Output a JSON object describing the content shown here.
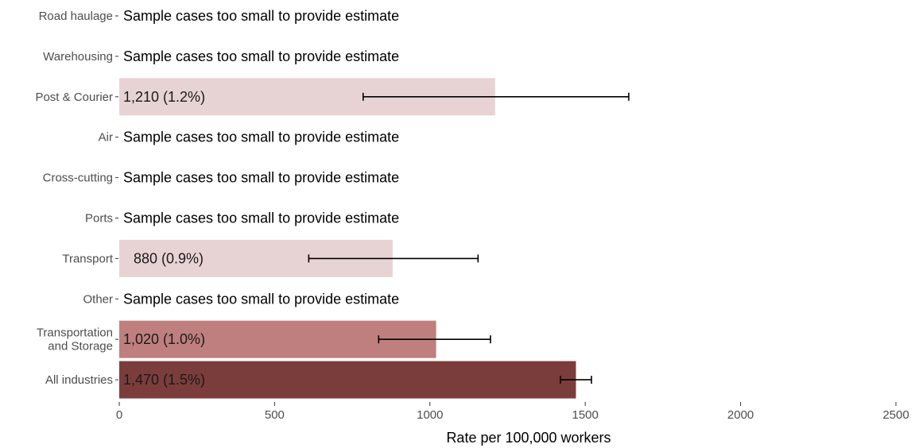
{
  "chart_data": {
    "type": "bar",
    "orientation": "horizontal",
    "xlabel": "Rate per 100,000 workers",
    "xlim": [
      0,
      2500
    ],
    "xticks": [
      0,
      500,
      1000,
      1500,
      2000,
      2500
    ],
    "xtick_labels": [
      "0",
      "500",
      "1000",
      "1500",
      "2000",
      "2500"
    ],
    "grid": false,
    "legend": "none",
    "categories": [
      {
        "name": "Road haulage",
        "value": null,
        "label": "Sample cases too small to provide estimate",
        "ci": null,
        "color": null
      },
      {
        "name": "Warehousing",
        "value": null,
        "label": "Sample cases too small to provide estimate",
        "ci": null,
        "color": null
      },
      {
        "name": "Post & Courier",
        "value": 1210,
        "label": "1,210 (1.2%)",
        "ci": [
          785,
          1640
        ],
        "color": "#e8d3d4"
      },
      {
        "name": "Air",
        "value": null,
        "label": "Sample cases too small to provide estimate",
        "ci": null,
        "color": null
      },
      {
        "name": "Cross-cutting",
        "value": null,
        "label": "Sample cases too small to provide estimate",
        "ci": null,
        "color": null
      },
      {
        "name": "Ports",
        "value": null,
        "label": "Sample cases too small to provide estimate",
        "ci": null,
        "color": null
      },
      {
        "name": "Transport",
        "value": 880,
        "label": "880 (0.9%)",
        "ci": [
          610,
          1155
        ],
        "color": "#e8d3d4"
      },
      {
        "name": "Other",
        "value": null,
        "label": "Sample cases too small to provide estimate",
        "ci": null,
        "color": null
      },
      {
        "name": "Transportation\nand Storage",
        "value": 1020,
        "label": "1,020 (1.0%)",
        "ci": [
          835,
          1195
        ],
        "color": "#bf7f7e"
      },
      {
        "name": "All industries",
        "value": 1470,
        "label": "1,470 (1.5%)",
        "ci": [
          1420,
          1520
        ],
        "color": "#7b3d3b"
      }
    ]
  }
}
